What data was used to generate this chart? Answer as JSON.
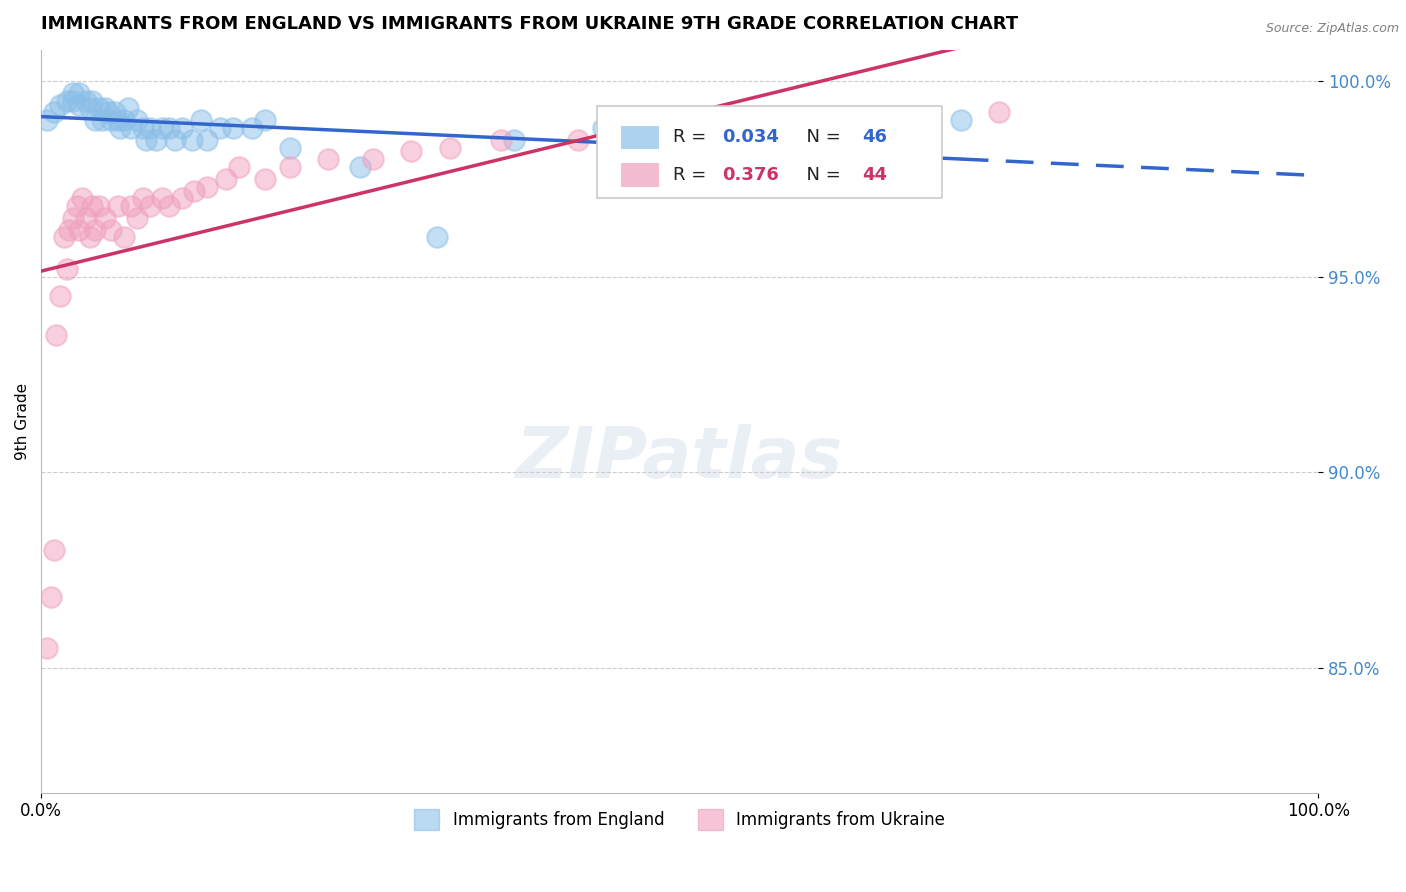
{
  "title": "IMMIGRANTS FROM ENGLAND VS IMMIGRANTS FROM UKRAINE 9TH GRADE CORRELATION CHART",
  "source": "Source: ZipAtlas.com",
  "ylabel": "9th Grade",
  "xlim": [
    0.0,
    1.0
  ],
  "ylim": [
    0.818,
    1.008
  ],
  "ytick_labels": [
    "100.0%",
    "95.0%",
    "90.0%",
    "85.0%"
  ],
  "ytick_values": [
    1.0,
    0.95,
    0.9,
    0.85
  ],
  "xtick_labels": [
    "0.0%",
    "100.0%"
  ],
  "xtick_values": [
    0.0,
    1.0
  ],
  "r_england": 0.034,
  "n_england": 46,
  "r_ukraine": 0.376,
  "n_ukraine": 44,
  "color_england": "#8bbfe8",
  "color_ukraine": "#f0a0be",
  "legend_england": "Immigrants from England",
  "legend_ukraine": "Immigrants from Ukraine",
  "england_x": [
    0.005,
    0.01,
    0.015,
    0.02,
    0.025,
    0.025,
    0.03,
    0.03,
    0.035,
    0.038,
    0.04,
    0.042,
    0.045,
    0.048,
    0.05,
    0.052,
    0.055,
    0.058,
    0.06,
    0.062,
    0.065,
    0.068,
    0.07,
    0.075,
    0.08,
    0.082,
    0.085,
    0.09,
    0.095,
    0.1,
    0.105,
    0.11,
    0.118,
    0.125,
    0.13,
    0.14,
    0.15,
    0.165,
    0.175,
    0.195,
    0.25,
    0.31,
    0.37,
    0.44,
    0.62,
    0.72
  ],
  "england_y": [
    0.99,
    0.992,
    0.994,
    0.995,
    0.995,
    0.997,
    0.994,
    0.997,
    0.995,
    0.993,
    0.995,
    0.99,
    0.993,
    0.99,
    0.993,
    0.992,
    0.99,
    0.992,
    0.99,
    0.988,
    0.99,
    0.993,
    0.988,
    0.99,
    0.988,
    0.985,
    0.988,
    0.985,
    0.988,
    0.988,
    0.985,
    0.988,
    0.985,
    0.99,
    0.985,
    0.988,
    0.988,
    0.988,
    0.99,
    0.983,
    0.978,
    0.96,
    0.985,
    0.988,
    0.988,
    0.99
  ],
  "ukraine_x": [
    0.005,
    0.008,
    0.01,
    0.012,
    0.015,
    0.018,
    0.02,
    0.022,
    0.025,
    0.028,
    0.03,
    0.032,
    0.035,
    0.038,
    0.04,
    0.042,
    0.045,
    0.05,
    0.055,
    0.06,
    0.065,
    0.07,
    0.075,
    0.08,
    0.085,
    0.095,
    0.1,
    0.11,
    0.12,
    0.13,
    0.145,
    0.155,
    0.175,
    0.195,
    0.225,
    0.26,
    0.29,
    0.32,
    0.36,
    0.42,
    0.5,
    0.58,
    0.66,
    0.75
  ],
  "ukraine_y": [
    0.855,
    0.868,
    0.88,
    0.935,
    0.945,
    0.96,
    0.952,
    0.962,
    0.965,
    0.968,
    0.962,
    0.97,
    0.965,
    0.96,
    0.968,
    0.962,
    0.968,
    0.965,
    0.962,
    0.968,
    0.96,
    0.968,
    0.965,
    0.97,
    0.968,
    0.97,
    0.968,
    0.97,
    0.972,
    0.973,
    0.975,
    0.978,
    0.975,
    0.978,
    0.98,
    0.98,
    0.982,
    0.983,
    0.985,
    0.985,
    0.988,
    0.988,
    0.99,
    0.992
  ]
}
